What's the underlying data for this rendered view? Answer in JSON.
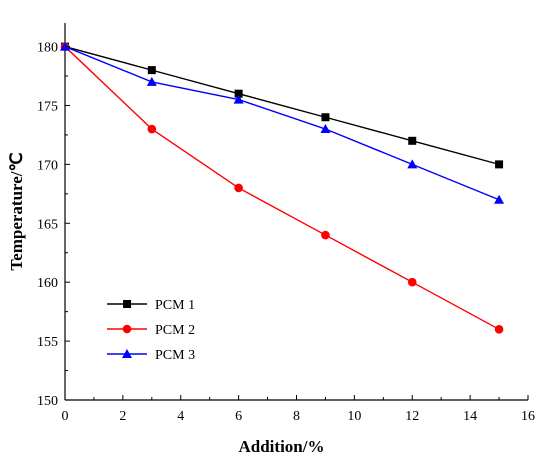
{
  "chart_data": {
    "type": "line",
    "xlabel": "Addition/%",
    "ylabel": "Temperature/℃",
    "xlim": [
      0,
      16
    ],
    "ylim": [
      150,
      182
    ],
    "xticks": [
      0,
      2,
      4,
      6,
      8,
      10,
      12,
      14,
      16
    ],
    "yticks": [
      150,
      155,
      160,
      165,
      170,
      175,
      180
    ],
    "grid": false,
    "legend_position": "bottom-left",
    "x": [
      0,
      3,
      6,
      9,
      12,
      15
    ],
    "series": [
      {
        "name": "PCM 1",
        "values": [
          180,
          178,
          176,
          174,
          172,
          170
        ],
        "color": "#000000",
        "marker": "square"
      },
      {
        "name": "PCM 2",
        "values": [
          180,
          173,
          168,
          164,
          160,
          156
        ],
        "color": "#ff0000",
        "marker": "circle"
      },
      {
        "name": "PCM 3",
        "values": [
          180,
          177,
          175.5,
          173,
          170,
          167
        ],
        "color": "#0000ff",
        "marker": "triangle"
      }
    ]
  }
}
